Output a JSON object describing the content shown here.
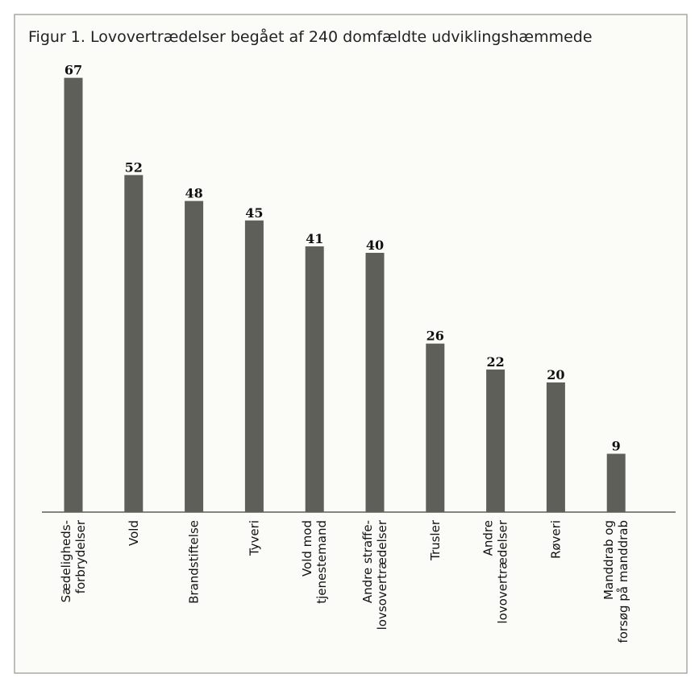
{
  "chart_data": {
    "type": "bar",
    "title": "Figur 1. Lovovertrædelser begået af 240 domfældte udviklingshæmmede",
    "categories": [
      "Sædeligheds-\nforbrydelser",
      "Vold",
      "Brandstiftelse",
      "Tyveri",
      "Vold mod\ntjenestemand",
      "Andre straffe-\nlovsovertrædelser",
      "Trusler",
      "Andre\nlovovertrædelser",
      "Røveri",
      "Manddrab og\nforsøg på manddrab"
    ],
    "values": [
      67,
      52,
      48,
      45,
      41,
      40,
      26,
      22,
      20,
      9
    ],
    "color": "#5f5f59"
  }
}
